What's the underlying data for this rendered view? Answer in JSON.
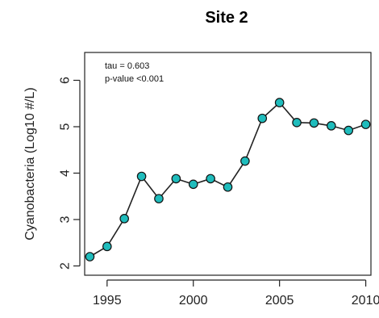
{
  "chart_data": {
    "type": "line",
    "title": "Site 2",
    "xlabel": "",
    "ylabel": "Cyanobacteria (Log10 #/L)",
    "xlim": [
      1993.7,
      2010.3
    ],
    "ylim": [
      1.8,
      6.6
    ],
    "x_ticks": [
      1995,
      2000,
      2005,
      2010
    ],
    "y_ticks": [
      2,
      3,
      4,
      5,
      6
    ],
    "grid": false,
    "legend": "none",
    "annotations": [
      "tau = 0.603",
      "p-value <0.001"
    ],
    "marker_color": "#1fbcbc",
    "line_color": "#222222",
    "series": [
      {
        "x": [
          1994,
          1995,
          1996,
          1997,
          1998,
          1999,
          2000,
          2001,
          2002,
          2003,
          2004,
          2005,
          2006,
          2007,
          2008,
          2009,
          2010
        ],
        "y": [
          2.2,
          2.42,
          3.02,
          3.93,
          3.45,
          3.88,
          3.76,
          3.88,
          3.7,
          4.26,
          5.18,
          5.52,
          5.09,
          5.08,
          5.02,
          4.92,
          5.05
        ]
      }
    ]
  }
}
